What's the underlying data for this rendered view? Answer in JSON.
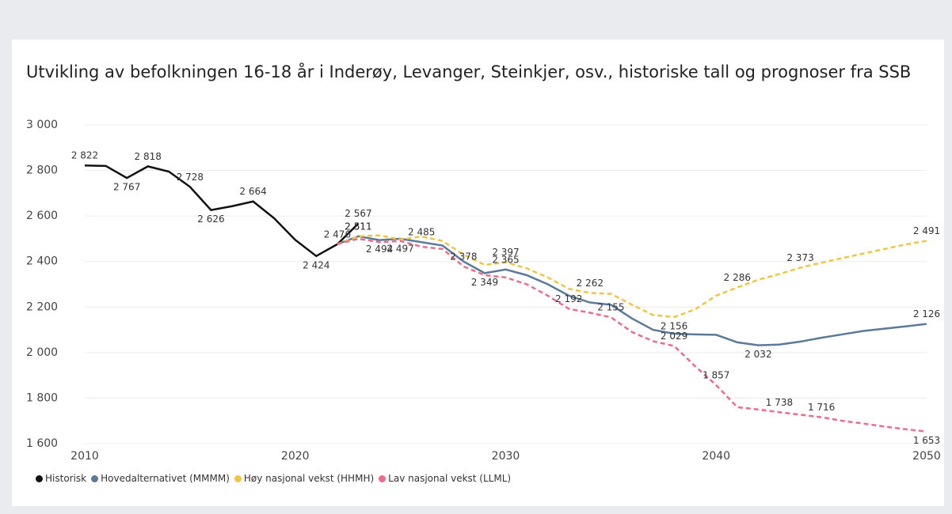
{
  "chart_data": {
    "type": "line",
    "title": "Utvikling av befolkningen 16-18 år i Inderøy, Levanger, Steinkjer, osv., historiske tall og prognoser fra SSB",
    "x": [
      2010,
      2011,
      2012,
      2013,
      2014,
      2015,
      2016,
      2017,
      2018,
      2019,
      2020,
      2021,
      2022,
      2023,
      2024,
      2025,
      2026,
      2027,
      2028,
      2029,
      2030,
      2031,
      2032,
      2033,
      2034,
      2035,
      2036,
      2037,
      2038,
      2039,
      2040,
      2041,
      2042,
      2043,
      2044,
      2045,
      2046,
      2047,
      2048,
      2049,
      2050
    ],
    "xlim": [
      2010,
      2050
    ],
    "xticks": [
      2010,
      2020,
      2030,
      2040,
      2050
    ],
    "ylim": [
      1600,
      3000
    ],
    "yticks": [
      {
        "value": 1600,
        "label": "1 600"
      },
      {
        "value": 1800,
        "label": "1 800"
      },
      {
        "value": 2000,
        "label": "2 000"
      },
      {
        "value": 2200,
        "label": "2 200"
      },
      {
        "value": 2400,
        "label": "2 400"
      },
      {
        "value": 2600,
        "label": "2 600"
      },
      {
        "value": 2800,
        "label": "2 800"
      },
      {
        "value": 3000,
        "label": "3 000"
      }
    ],
    "grid": true,
    "series": [
      {
        "name": "Historisk",
        "color": "#111111",
        "dashed": false,
        "values": [
          2822,
          2820,
          2767,
          2818,
          2795,
          2728,
          2626,
          2643,
          2664,
          2590,
          2495,
          2424,
          2476,
          2567,
          null,
          null,
          null,
          null,
          null,
          null,
          null,
          null,
          null,
          null,
          null,
          null,
          null,
          null,
          null,
          null,
          null,
          null,
          null,
          null,
          null,
          null,
          null,
          null,
          null,
          null,
          null
        ],
        "value_labels": [
          "2 822",
          null,
          "2 767",
          "2 818",
          null,
          "2 728",
          "2 626",
          null,
          "2 664",
          null,
          null,
          "2 424",
          "2 476",
          "2 567",
          null,
          null,
          null,
          null,
          null,
          null,
          null,
          null,
          null,
          null,
          null,
          null,
          null,
          null,
          null,
          null,
          null,
          null,
          null,
          null,
          null,
          null,
          null,
          null,
          null,
          null,
          null
        ]
      },
      {
        "name": "Hovedalternativet (MMMM)",
        "color": "#5b7a99",
        "dashed": false,
        "values": [
          null,
          null,
          null,
          null,
          null,
          null,
          null,
          null,
          null,
          null,
          null,
          null,
          2476,
          2511,
          2494,
          2500,
          2485,
          2470,
          2400,
          2349,
          2365,
          2340,
          2300,
          2250,
          2220,
          2210,
          2150,
          2100,
          2083,
          2080,
          2078,
          2045,
          2032,
          2035,
          2048,
          2065,
          2080,
          2095,
          2105,
          2115,
          2126
        ],
        "value_labels": [
          null,
          null,
          null,
          null,
          null,
          null,
          null,
          null,
          null,
          null,
          null,
          null,
          null,
          "2 511",
          "2 494",
          null,
          "2 485",
          null,
          null,
          "2 349",
          "2 365",
          null,
          null,
          null,
          null,
          null,
          null,
          null,
          null,
          null,
          null,
          null,
          "2 032",
          null,
          null,
          null,
          null,
          null,
          null,
          null,
          "2 126"
        ]
      },
      {
        "name": "Høy nasjonal vekst (HHMH)",
        "color": "#f0c544",
        "dashed": true,
        "values": [
          null,
          null,
          null,
          null,
          null,
          null,
          null,
          null,
          null,
          null,
          null,
          null,
          2476,
          2511,
          2515,
          2497,
          2510,
          2490,
          2430,
          2385,
          2397,
          2370,
          2330,
          2280,
          2262,
          2258,
          2210,
          2165,
          2156,
          2190,
          2250,
          2286,
          2320,
          2345,
          2373,
          2395,
          2415,
          2435,
          2455,
          2475,
          2491
        ],
        "value_labels": [
          null,
          null,
          null,
          null,
          null,
          null,
          null,
          null,
          null,
          null,
          null,
          null,
          null,
          "2 511",
          null,
          "2 497",
          null,
          null,
          null,
          null,
          "2 397",
          null,
          null,
          null,
          "2 262",
          null,
          null,
          null,
          "2 156",
          null,
          null,
          "2 286",
          null,
          null,
          "2 373",
          null,
          null,
          null,
          null,
          null,
          "2 491"
        ]
      },
      {
        "name": "Lav nasjonal vekst (LLML)",
        "color": "#f06b8a",
        "dashed": true,
        "values": [
          null,
          null,
          null,
          null,
          null,
          null,
          null,
          null,
          null,
          null,
          null,
          null,
          2476,
          2500,
          2485,
          2490,
          2465,
          2455,
          2378,
          2340,
          2330,
          2300,
          2250,
          2192,
          2175,
          2155,
          2090,
          2050,
          2029,
          1940,
          1857,
          1760,
          1750,
          1738,
          1727,
          1716,
          1700,
          1688,
          1675,
          1663,
          1653
        ],
        "value_labels": [
          null,
          null,
          null,
          null,
          null,
          null,
          null,
          null,
          null,
          null,
          null,
          null,
          null,
          null,
          null,
          null,
          null,
          null,
          "2 378",
          null,
          null,
          null,
          null,
          "2 192",
          null,
          "2 155",
          null,
          null,
          "2 029",
          null,
          "1 857",
          null,
          null,
          "1 738",
          null,
          "1 716",
          null,
          null,
          null,
          null,
          "1 653"
        ]
      }
    ]
  }
}
